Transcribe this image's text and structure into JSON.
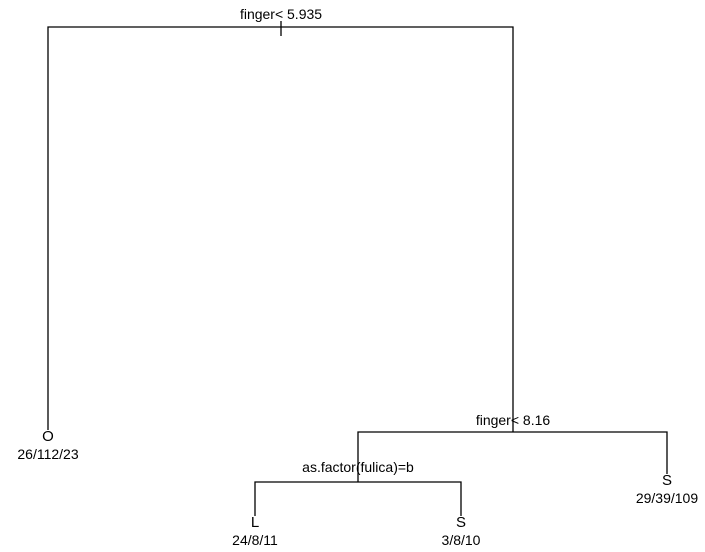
{
  "tree": {
    "splits": [
      {
        "id": "root",
        "label": "finger< 5.935"
      },
      {
        "id": "n2",
        "label": "finger< 8.16"
      },
      {
        "id": "n3",
        "label": "as.factor(fulica)=b"
      }
    ],
    "leaves": [
      {
        "id": "leaf-o",
        "class": "O",
        "counts": "26/112/23"
      },
      {
        "id": "leaf-l",
        "class": "L",
        "counts": "24/8/11"
      },
      {
        "id": "leaf-s1",
        "class": "S",
        "counts": "3/8/10"
      },
      {
        "id": "leaf-s2",
        "class": "S",
        "counts": "29/39/109"
      }
    ]
  }
}
